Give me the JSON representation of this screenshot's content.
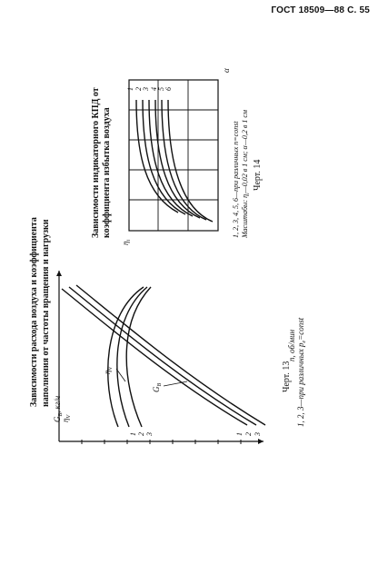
{
  "header": {
    "text": "ГОСТ 18509—88 С. 55"
  },
  "chart13": {
    "title_line1": "Зависимости расхода воздуха и коэффициента",
    "title_line2": "наполнения от частоты вращения и нагрузки",
    "ylabel_main": "G",
    "ylabel_main_sub": "B",
    "ylabel_main_unit": ", кг/ч",
    "ylabel_second": "η",
    "ylabel_second_sub": "V",
    "xlabel": "n, об/мин",
    "label_eta_v": "η",
    "label_eta_v_sub": "V",
    "label_g_b": "G",
    "label_g_b_sub": "B",
    "eta_curve_labels": [
      "1",
      "2",
      "3"
    ],
    "g_curve_labels": [
      "1",
      "2",
      "3"
    ],
    "caption": "1, 2, 3—при различных p",
    "caption_sub": "e",
    "caption_end": "=const",
    "figure_label": "Черт. 13"
  },
  "chart14": {
    "title_line1": "Зависимости индикаторного КПД от",
    "title_line2": "коэффициента избытка воздуха",
    "ylabel": "η",
    "ylabel_sub": "i",
    "xlabel": "α",
    "curve_labels": [
      "1",
      "2",
      "3",
      "4",
      "5",
      "6"
    ],
    "caption_line1": "1, 2, 3, 4, 5, 6—при различных n=const",
    "caption_line2": "Масштабы: η",
    "caption_line2_sub": "i",
    "caption_line2_end": "—0,02 в 1 см; α—0,2 в 1 см",
    "figure_label": "Черт. 14"
  }
}
